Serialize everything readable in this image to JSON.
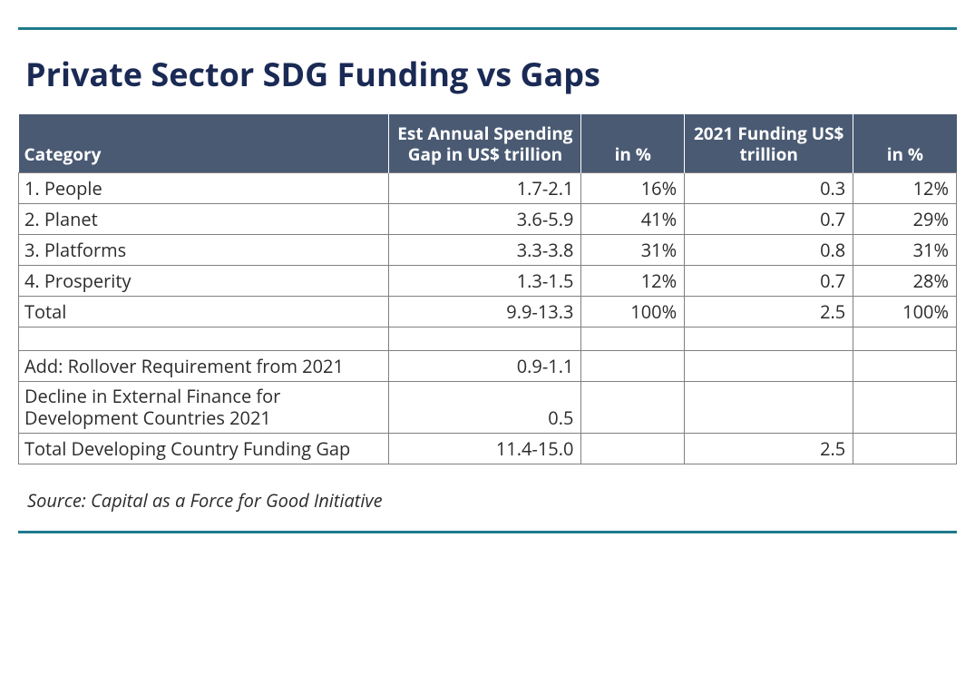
{
  "colors": {
    "rule": "#1f7a8c",
    "title": "#1a2a55",
    "header_bg": "#4a5a73",
    "header_text": "#ffffff",
    "cell_text": "#2b2b2b",
    "cell_border": "#808080",
    "source_text": "#2b2b2b"
  },
  "title": "Private Sector SDG Funding vs Gaps",
  "table": {
    "headers": {
      "category": "Category",
      "gap": "Est Annual Spending Gap in US$ trillion",
      "gap_pct": "in %",
      "funding": "2021 Funding US$ trillion",
      "funding_pct": "in %"
    },
    "rows": [
      {
        "cat": "1. People",
        "gap": "1.7-2.1",
        "gap_pct": "16%",
        "fund": "0.3",
        "fund_pct": "12%"
      },
      {
        "cat": "2. Planet",
        "gap": "3.6-5.9",
        "gap_pct": "41%",
        "fund": "0.7",
        "fund_pct": "29%"
      },
      {
        "cat": "3. Platforms",
        "gap": "3.3-3.8",
        "gap_pct": "31%",
        "fund": "0.8",
        "fund_pct": "31%"
      },
      {
        "cat": "4. Prosperity",
        "gap": "1.3-1.5",
        "gap_pct": "12%",
        "fund": "0.7",
        "fund_pct": "28%"
      },
      {
        "cat": "Total",
        "gap": "9.9-13.3",
        "gap_pct": "100%",
        "fund": "2.5",
        "fund_pct": "100%"
      }
    ],
    "extra": [
      {
        "cat": "Add: Rollover Requirement from 2021",
        "gap": "0.9-1.1",
        "fund": ""
      },
      {
        "cat": "Decline in External Finance for Development Countries 2021",
        "gap": "0.5",
        "fund": ""
      },
      {
        "cat": "Total Developing Country Funding Gap",
        "gap": "11.4-15.0",
        "fund": "2.5"
      }
    ]
  },
  "source": "Source: Capital as a Force for Good Initiative"
}
